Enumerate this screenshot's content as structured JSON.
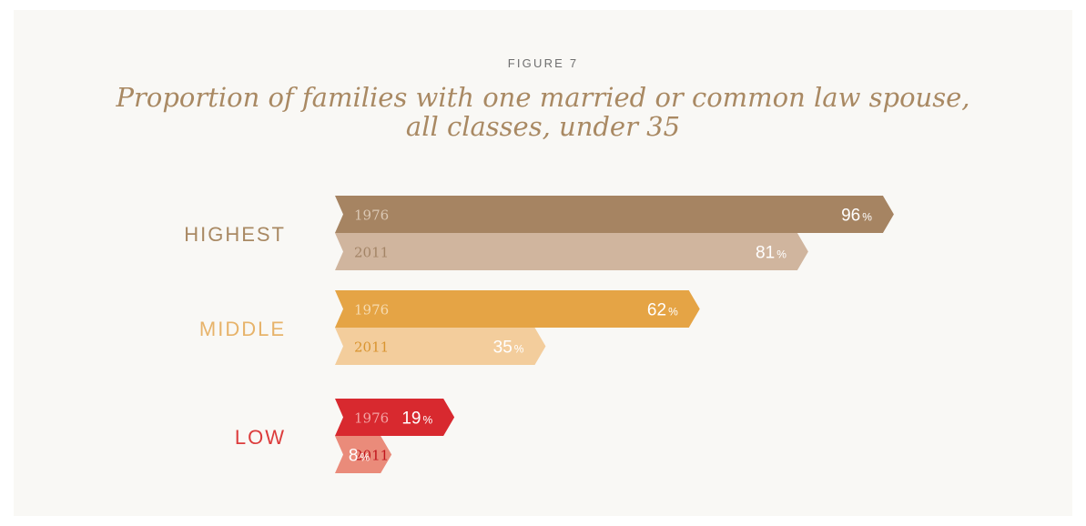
{
  "figure_label": "FIGURE 7",
  "title_line1": "Proportion of families with one married or common law spouse,",
  "title_line2": "all classes, under 35",
  "chart_data": {
    "type": "bar",
    "orientation": "horizontal",
    "title": "Proportion of families with one married or common law spouse, all classes, under 35",
    "categories": [
      "HIGHEST",
      "MIDDLE",
      "LOW"
    ],
    "series": [
      {
        "name": "1976",
        "values": [
          96,
          62,
          19
        ]
      },
      {
        "name": "2011",
        "values": [
          81,
          35,
          8
        ]
      }
    ],
    "unit": "%",
    "xlim": [
      0,
      100
    ],
    "grid": false,
    "legend": "none",
    "colors": {
      "HIGHEST": {
        "label": "#a98963",
        "1976": "#a68462",
        "2011": "#d0b59e",
        "year_1976": "#dbc8b4",
        "year_2011": "#a38466"
      },
      "MIDDLE": {
        "label": "#e7b36a",
        "1976": "#e5a445",
        "2011": "#f3cd9c",
        "year_1976": "#f6dbb0",
        "year_2011": "#d9942f"
      },
      "LOW": {
        "label": "#dc3c3c",
        "1976": "#d8292f",
        "2011": "#ea8b7a",
        "year_1976": "#f3a3a3",
        "year_2011": "#c0161d"
      }
    }
  }
}
